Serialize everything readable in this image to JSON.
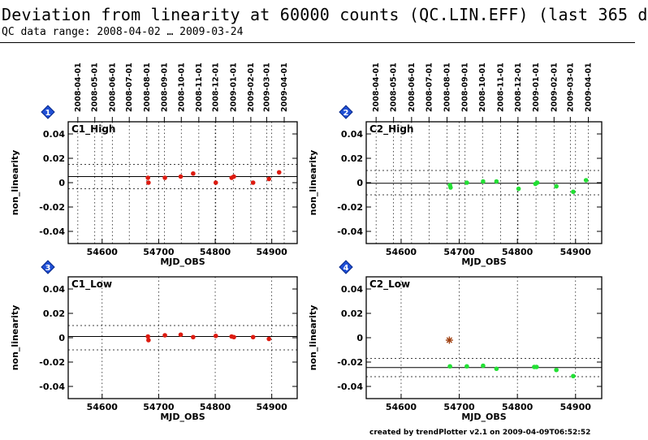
{
  "header": {
    "title": "Deviation from linearity at 60000 counts (QC.LIN.EFF) (last 365 d",
    "subtitle": "QC data range: 2008-04-02 … 2009-03-24"
  },
  "footer": "created by trendPlotter v2.1 on 2009-04-09T06:52:52",
  "colors": {
    "badge": "#1f4fd6",
    "fit_line": "#000000"
  },
  "chart_data": [
    {
      "type": "scatter",
      "badge": "1",
      "label": "C1_High",
      "color": "#dd1b10",
      "marker": "dot",
      "xlabel": "MJD_OBS",
      "ylabel": "non_linearity",
      "xlim": [
        54540,
        54945
      ],
      "ylim": [
        -0.05,
        0.05
      ],
      "xticks": [
        54600,
        54700,
        54800,
        54900
      ],
      "yticks": [
        0.04,
        0.02,
        0,
        -0.02,
        -0.04
      ],
      "ytick_labels": [
        "0.04",
        "0.02",
        "0",
        "-0.02",
        "-0.04"
      ],
      "date_ticks": [
        "2008-04-01",
        "2008-05-01",
        "2008-06-01",
        "2008-07-01",
        "2008-08-01",
        "2008-09-01",
        "2008-10-01",
        "2008-11-01",
        "2008-12-01",
        "2009-01-01",
        "2009-02-01",
        "2009-03-01",
        "2009-04-01"
      ],
      "fit": 0.005,
      "band": [
        0.015,
        -0.005
      ],
      "x": [
        54681,
        54682,
        54711,
        54739,
        54761,
        54801,
        54829,
        54833,
        54867,
        54895,
        54913
      ],
      "y": [
        0.004,
        0.0,
        0.004,
        0.005,
        0.0075,
        0.0,
        0.004,
        0.005,
        0.0,
        0.003,
        0.0085
      ]
    },
    {
      "type": "scatter",
      "badge": "2",
      "label": "C2_High",
      "color": "#22e034",
      "marker": "dot",
      "xlabel": "MJD_OBS",
      "ylabel": "non_linearity",
      "xlim": [
        54540,
        54945
      ],
      "ylim": [
        -0.05,
        0.05
      ],
      "xticks": [
        54600,
        54700,
        54800,
        54900
      ],
      "yticks": [
        0.04,
        0.02,
        0,
        -0.02,
        -0.04
      ],
      "ytick_labels": [
        "0.04",
        "0.02",
        "0",
        "-0.02",
        "-0.04"
      ],
      "date_ticks": [
        "2008-04-01",
        "2008-05-01",
        "2008-06-01",
        "2008-07-01",
        "2008-08-01",
        "2008-09-01",
        "2008-10-01",
        "2008-11-01",
        "2008-12-01",
        "2009-01-01",
        "2009-02-01",
        "2009-03-01",
        "2009-04-01"
      ],
      "fit": -0.0005,
      "band": [
        0.01,
        -0.01
      ],
      "x": [
        54684,
        54685,
        54713,
        54741,
        54764,
        54802,
        54831,
        54834,
        54867,
        54896,
        54918
      ],
      "y": [
        -0.002,
        -0.004,
        0.0,
        0.001,
        0.001,
        -0.005,
        -0.001,
        0.0,
        -0.003,
        -0.0075,
        0.002
      ]
    },
    {
      "type": "scatter",
      "badge": "3",
      "label": "C1_Low",
      "color": "#dd1b10",
      "marker": "dot",
      "xlabel": "MJD_OBS",
      "ylabel": "non_linearity",
      "xlim": [
        54540,
        54945
      ],
      "ylim": [
        -0.05,
        0.05
      ],
      "xticks": [
        54600,
        54700,
        54800,
        54900
      ],
      "yticks": [
        0.04,
        0.02,
        0,
        -0.02,
        -0.04
      ],
      "ytick_labels": [
        "0.04",
        "0.02",
        "0",
        "-0.02",
        "-0.04"
      ],
      "fit": 0.001,
      "band": [
        0.01,
        -0.01
      ],
      "x": [
        54681,
        54682,
        54711,
        54739,
        54761,
        54801,
        54829,
        54833,
        54867,
        54895
      ],
      "y": [
        0.001,
        -0.002,
        0.002,
        0.0025,
        0.0005,
        0.0015,
        0.001,
        0.0005,
        0.0005,
        -0.001
      ]
    },
    {
      "type": "scatter",
      "badge": "4",
      "label": "C2_Low",
      "color": "#22e034",
      "marker": "dot",
      "outlier": {
        "x": 54683,
        "y": -0.002,
        "color": "#a04010"
      },
      "xlabel": "MJD_OBS",
      "ylabel": "non_linearity",
      "xlim": [
        54540,
        54945
      ],
      "ylim": [
        -0.05,
        0.05
      ],
      "xticks": [
        54600,
        54700,
        54800,
        54900
      ],
      "yticks": [
        0.04,
        0.02,
        0,
        -0.02,
        -0.04
      ],
      "ytick_labels": [
        "0.04",
        "0.02",
        "0",
        "-0.02",
        "-0.04"
      ],
      "fit": -0.0245,
      "band": [
        -0.017,
        -0.032
      ],
      "x": [
        54684,
        54713,
        54741,
        54764,
        54829,
        54833,
        54867,
        54896
      ],
      "y": [
        -0.0235,
        -0.0235,
        -0.023,
        -0.0255,
        -0.024,
        -0.024,
        -0.0265,
        -0.0315
      ]
    }
  ]
}
